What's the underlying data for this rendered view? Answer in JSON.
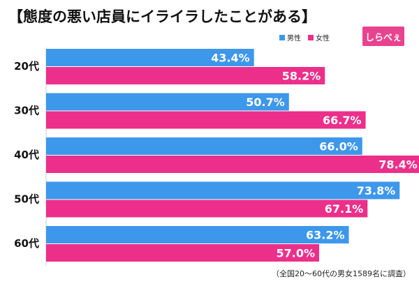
{
  "title": "【態度の悪い店員にイライラしたことがある】",
  "logo_text": "しらべぇ",
  "footnote": "（全国20〜60代の男女1589名に調査）",
  "colors": {
    "male": "#3d97ea",
    "female": "#ec2f8a",
    "logo": "#e8438f"
  },
  "chart_data": {
    "type": "bar",
    "orientation": "horizontal",
    "categories": [
      "20代",
      "30代",
      "40代",
      "50代",
      "60代"
    ],
    "series": [
      {
        "name": "男性",
        "values": [
          43.4,
          50.7,
          66.0,
          73.8,
          63.2
        ]
      },
      {
        "name": "女性",
        "values": [
          58.2,
          66.7,
          78.4,
          67.1,
          57.0
        ]
      }
    ],
    "value_labels": [
      [
        "43.4%",
        "50.7%",
        "66.0%",
        "73.8%",
        "63.2%"
      ],
      [
        "58.2%",
        "66.7%",
        "78.4%",
        "67.1%",
        "57.0%"
      ]
    ],
    "xlim": [
      0,
      100
    ],
    "legend_position": "top-right",
    "grid": false
  }
}
